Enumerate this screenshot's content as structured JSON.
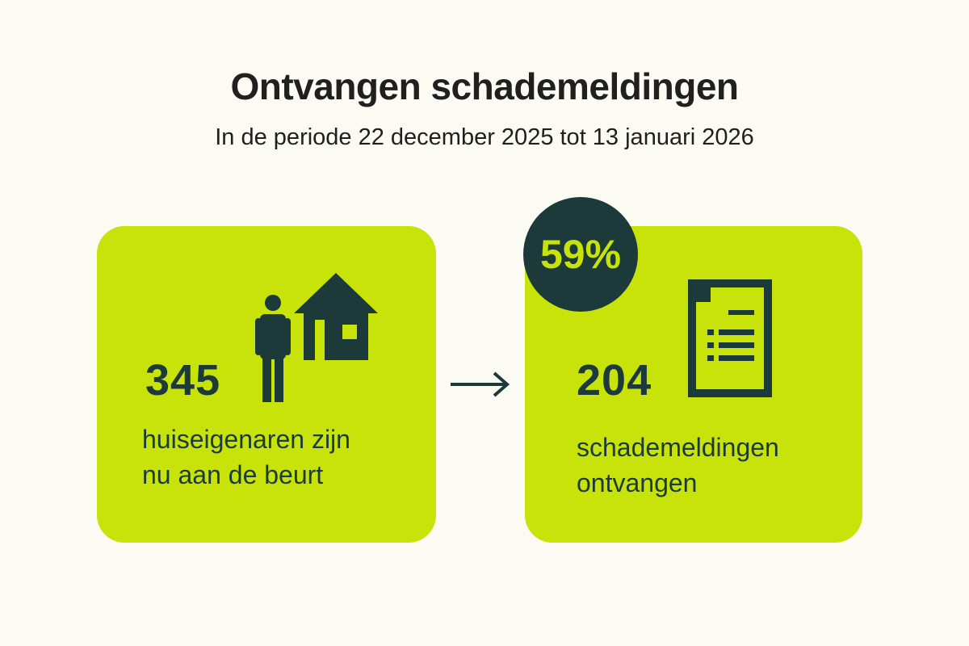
{
  "header": {
    "title": "Ontvangen schademeldingen",
    "subtitle": "In de periode 22 december 2025 tot 13 januari 2026"
  },
  "left_card": {
    "number": "345",
    "description": "huiseigenaren zijn\nnu aan de beurt",
    "icons": [
      "person-icon",
      "house-icon"
    ]
  },
  "right_card": {
    "badge": "59%",
    "badge_fraction": 0.59,
    "number": "204",
    "description": "schademeldingen\nontvangen",
    "icons": [
      "document-icon"
    ]
  },
  "connector_icon": "arrow-right-icon",
  "colors": {
    "background": "#fbfbf4",
    "card": "#c8e30a",
    "dark": "#1c3a3a",
    "title_text": "#202020"
  }
}
